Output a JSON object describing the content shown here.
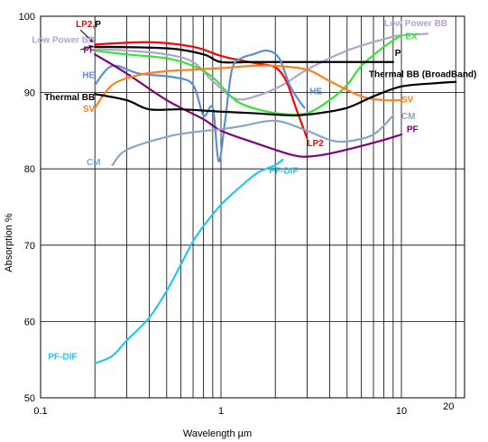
{
  "chart_data": {
    "type": "line",
    "title": "",
    "xlabel": "Wavelength µm",
    "ylabel": "Absorption %",
    "x_scale": "log",
    "xlim": [
      0.1,
      20
    ],
    "ylim": [
      50,
      100
    ],
    "x_tick_labels": [
      {
        "value": 0.1,
        "label": "0.1"
      },
      {
        "value": 1,
        "label": "1"
      },
      {
        "value": 10,
        "label": "10"
      },
      {
        "value": 20,
        "label": "20"
      }
    ],
    "y_tick_labels": [
      {
        "value": 50,
        "label": "50"
      },
      {
        "value": 60,
        "label": "60"
      },
      {
        "value": 70,
        "label": "70"
      },
      {
        "value": 80,
        "label": "80"
      },
      {
        "value": 90,
        "label": "90"
      },
      {
        "value": 100,
        "label": "100"
      }
    ],
    "grid": true,
    "legend": "none",
    "series": [
      {
        "name": "Low Power BB",
        "color": "#b3a3cc",
        "x": [
          0.2,
          0.3,
          0.5,
          0.7,
          0.9,
          1.2,
          1.6,
          2.2,
          3,
          5,
          8,
          10,
          14
        ],
        "y": [
          95.7,
          95.5,
          95.0,
          94.0,
          91.5,
          89.2,
          89.6,
          91.0,
          93.0,
          95.5,
          97.0,
          97.5,
          97.7
        ],
        "labels": [
          {
            "text": "Low Power BB",
            "at": [
              0.2,
              96.5
            ],
            "anchor": "end"
          },
          {
            "text": "Low Power BB",
            "at": [
              18,
              98.7
            ],
            "anchor": "end"
          }
        ]
      },
      {
        "name": "EX",
        "color": "#33e633",
        "x": [
          0.2,
          0.3,
          0.5,
          0.7,
          0.9,
          1.2,
          1.6,
          2.2,
          3,
          4,
          5,
          6,
          8,
          10
        ],
        "y": [
          95.5,
          95.0,
          94.5,
          93.5,
          92.0,
          89.0,
          87.8,
          87.2,
          87.3,
          89.0,
          91.0,
          93.5,
          96.0,
          97.5
        ],
        "labels": [
          {
            "text": "EX",
            "at": [
              10.5,
              97.0
            ],
            "anchor": "start"
          }
        ]
      },
      {
        "name": "LP2, P",
        "color": "#ff0000",
        "x": [
          0.2,
          0.4,
          0.7,
          1.0,
          1.3,
          1.6,
          2.0,
          2.3,
          2.6,
          3.0
        ],
        "y": [
          96.3,
          96.6,
          96.0,
          94.8,
          94.2,
          93.8,
          93.3,
          91.5,
          88.0,
          84.0
        ],
        "labels": [
          {
            "text": "LP2,",
            "at": [
              0.2,
              98.6
            ],
            "anchor": "end"
          },
          {
            "text": "LP2",
            "at": [
              3.0,
              83.0
            ],
            "anchor": "start"
          }
        ]
      },
      {
        "name": "P",
        "color": "#000000",
        "x": [
          0.2,
          0.5,
          0.8,
          1.0,
          1.5,
          3.0,
          6.0,
          9.0
        ],
        "y": [
          96.0,
          95.8,
          95.0,
          94.0,
          94.0,
          94.0,
          94.0,
          94.0
        ],
        "labels": [
          {
            "text": "P",
            "at": [
              0.2,
              98.6
            ],
            "anchor": "start"
          },
          {
            "text": "P",
            "at": [
              9.2,
              94.8
            ],
            "anchor": "start"
          }
        ]
      },
      {
        "name": "HE",
        "color": "#5b8ed6",
        "x": [
          0.2,
          0.25,
          0.35,
          0.55,
          0.7,
          0.8,
          0.9,
          0.97,
          1.05,
          1.15,
          1.3,
          1.5,
          1.8,
          2.1,
          2.4,
          2.7,
          2.9
        ],
        "y": [
          91.0,
          93.5,
          92.5,
          92.0,
          91.0,
          87.0,
          88.0,
          81.0,
          86.0,
          93.0,
          94.5,
          95.0,
          95.5,
          94.5,
          91.0,
          89.0,
          88.0
        ],
        "labels": [
          {
            "text": "HE",
            "at": [
              0.2,
              91.9
            ],
            "anchor": "end"
          },
          {
            "text": "HE",
            "at": [
              3.1,
              89.8
            ],
            "anchor": "start"
          }
        ]
      },
      {
        "name": "PF",
        "color": "#800080",
        "x": [
          0.2,
          0.3,
          0.5,
          0.8,
          1.0,
          1.5,
          2.0,
          2.5,
          3.0,
          4.0,
          6.0,
          8.0,
          10.0
        ],
        "y": [
          95.0,
          92.5,
          89.0,
          86.5,
          85.0,
          83.5,
          82.5,
          81.8,
          81.6,
          82.0,
          83.0,
          83.8,
          84.5
        ],
        "labels": [
          {
            "text": "PF",
            "at": [
              0.2,
              95.2
            ],
            "anchor": "end"
          },
          {
            "text": "PF",
            "at": [
              10.7,
              84.8
            ],
            "anchor": "start"
          }
        ]
      },
      {
        "name": "SV",
        "color": "#ff7f1a",
        "x": [
          0.2,
          0.25,
          0.35,
          0.5,
          0.7,
          1.0,
          1.5,
          2.0,
          3.0,
          4.0,
          6.0,
          8.0,
          10.0
        ],
        "y": [
          88.0,
          91.0,
          92.3,
          92.8,
          93.0,
          93.2,
          93.5,
          93.5,
          93.0,
          91.5,
          89.5,
          89.0,
          89.0
        ],
        "labels": [
          {
            "text": "SV",
            "at": [
              0.2,
              87.5
            ],
            "anchor": "end"
          },
          {
            "text": "SV",
            "at": [
              10.0,
              88.7
            ],
            "anchor": "start"
          }
        ]
      },
      {
        "name": "Thermal BB (BroadBand)",
        "color": "#000000",
        "x": [
          0.2,
          0.3,
          0.4,
          0.6,
          1.0,
          1.5,
          2.5,
          3.5,
          5.0,
          7.0,
          10.0,
          15.0,
          20.0
        ],
        "y": [
          89.8,
          89.0,
          87.8,
          87.8,
          87.5,
          87.3,
          87.0,
          87.3,
          88.0,
          89.5,
          90.8,
          91.2,
          91.4
        ],
        "labels": [
          {
            "text": "Thermal BB",
            "at": [
              0.2,
              89.0
            ],
            "anchor": "end"
          },
          {
            "text": "Thermal BB (BroadBand)",
            "at": [
              6.6,
              92.0
            ],
            "anchor": "start"
          }
        ]
      },
      {
        "name": "CM",
        "color": "#8aa4c8",
        "x": [
          0.25,
          0.3,
          0.5,
          0.7,
          1.0,
          1.3,
          2.0,
          3.0,
          4.0,
          5.0,
          7.0,
          9.0
        ],
        "y": [
          80.5,
          82.5,
          84.2,
          84.8,
          85.2,
          85.6,
          86.3,
          85.0,
          83.8,
          83.6,
          84.5,
          87.0
        ],
        "labels": [
          {
            "text": "CM",
            "at": [
              0.18,
              80.5
            ],
            "anchor": "start"
          },
          {
            "text": "CM",
            "at": [
              10.0,
              86.5
            ],
            "anchor": "start"
          }
        ]
      },
      {
        "name": "PF-DIF",
        "color": "#22c8f0",
        "x": [
          0.2,
          0.25,
          0.3,
          0.4,
          0.5,
          0.6,
          0.7,
          0.8,
          1.0,
          1.3,
          1.6,
          2.0,
          2.2
        ],
        "y": [
          54.5,
          55.5,
          57.5,
          60.5,
          64.0,
          67.5,
          70.5,
          72.5,
          75.3,
          77.8,
          79.5,
          80.5,
          81.2
        ],
        "labels": [
          {
            "text": "PF-DIF",
            "at": [
              0.11,
              55.0
            ],
            "anchor": "start"
          },
          {
            "text": "PF-DIF",
            "at": [
              1.85,
              79.4
            ],
            "anchor": "start"
          }
        ]
      }
    ]
  }
}
